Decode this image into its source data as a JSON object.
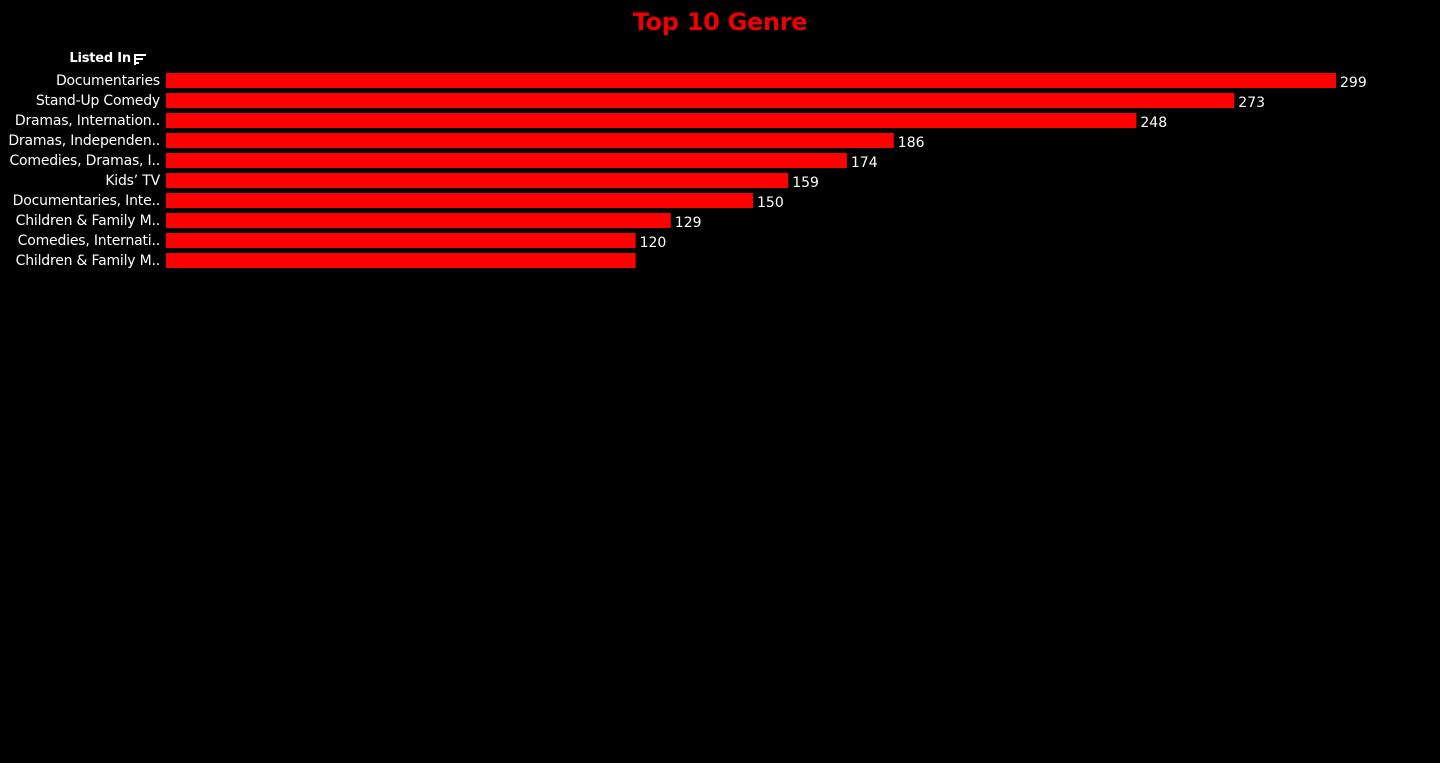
{
  "colors": {
    "background": "#000000",
    "bar": "#ff0000",
    "title": "#ee0000",
    "text": "#ffffff"
  },
  "header": {
    "title": "Top 10 Genre",
    "column_label": "Listed In",
    "sort_icon": "sort-descending-icon"
  },
  "chart_data": {
    "type": "bar",
    "orientation": "horizontal",
    "title": "Top 10 Genre",
    "xlabel": "",
    "ylabel": "Listed In",
    "categories": [
      "Documentaries",
      "Stand-Up Comedy",
      "Dramas, Internation..",
      "Dramas, Independen..",
      "Comedies, Dramas, I..",
      "Kids’ TV",
      "Documentaries, Inte..",
      "Children & Family M..",
      "Comedies, Internati..",
      "Children & Family M.."
    ],
    "values": [
      299,
      273,
      248,
      186,
      174,
      159,
      150,
      129,
      120,
      120
    ],
    "data_labels": [
      "299",
      "273",
      "248",
      "186",
      "174",
      "159",
      "150",
      "129",
      "120",
      ""
    ],
    "xlim": [
      0,
      299
    ],
    "grid": false,
    "legend": "none"
  }
}
